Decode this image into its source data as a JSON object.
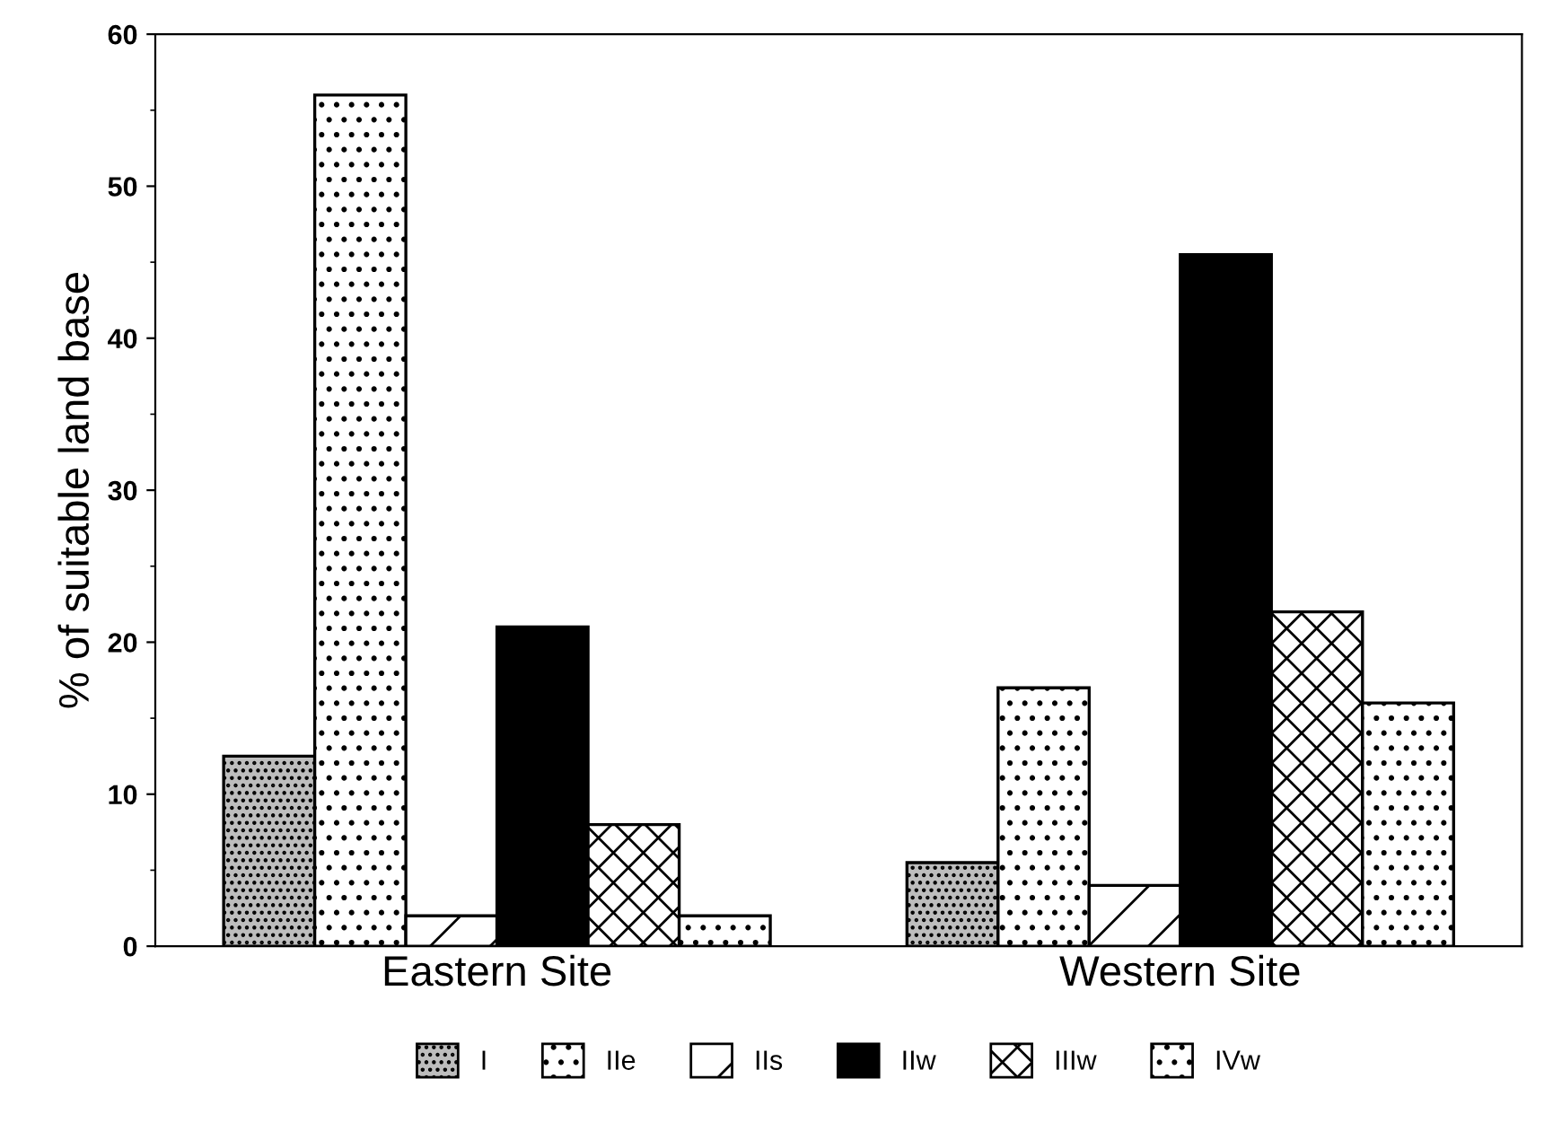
{
  "chart_data": {
    "type": "bar",
    "ylabel": "% of suitable land base",
    "categories": [
      "Eastern Site",
      "Western Site"
    ],
    "series": [
      {
        "name": "I",
        "color": "#bdbdbd",
        "values": [
          12.5,
          5.5
        ]
      },
      {
        "name": "IIe",
        "color": "#ffffff",
        "values": [
          56,
          17
        ]
      },
      {
        "name": "IIs",
        "color": "#ffffff",
        "values": [
          2,
          4
        ]
      },
      {
        "name": "IIw",
        "color": "#000000",
        "values": [
          21,
          45.5
        ]
      },
      {
        "name": "IIIw",
        "color": "#ffffff",
        "values": [
          8,
          22
        ]
      },
      {
        "name": "IVw",
        "color": "#ffffff",
        "values": [
          2,
          16
        ]
      }
    ],
    "ylim": [
      0,
      60
    ],
    "yticks": [
      0,
      10,
      20,
      30,
      40,
      50,
      60
    ],
    "grid": false,
    "legend": "bottom"
  }
}
